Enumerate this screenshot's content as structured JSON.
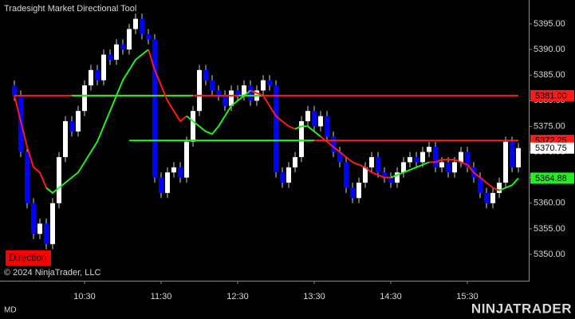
{
  "chart_data": {
    "type": "candlestick",
    "title": "Tradesight Market Directional Tool",
    "copyright": "© 2024 NinjaTrader, LLC",
    "indicator_label": "Direction",
    "indicator_label_color": "#ff0000",
    "footer_left": "MD",
    "logo": "NINJATRADER",
    "logo_color": "#f26a21",
    "up_color": "#ffffff",
    "down_color": "#0000ff",
    "wick_color": "#d0d0d0",
    "xlim": [
      563.75,
      978.1
    ],
    "xticks": [
      {
        "value": 630,
        "label": "10:30"
      },
      {
        "value": 690,
        "label": "11:30"
      },
      {
        "value": 750,
        "label": "12:30"
      },
      {
        "value": 810,
        "label": "13:30"
      },
      {
        "value": 870,
        "label": "14:30"
      },
      {
        "value": 930,
        "label": "15:30"
      }
    ],
    "ylim": [
      5344.86,
      5399.67
    ],
    "yticks": [
      {
        "value": 5350,
        "label": "5350.00"
      },
      {
        "value": 5355,
        "label": "5355.00"
      },
      {
        "value": 5360,
        "label": "5360.00"
      },
      {
        "value": 5365,
        "label": "5365.00"
      },
      {
        "value": 5370,
        "label": "5370.00"
      },
      {
        "value": 5375,
        "label": "5375.00"
      },
      {
        "value": 5380,
        "label": "5380.00"
      },
      {
        "value": 5385,
        "label": "5385.00"
      },
      {
        "value": 5390,
        "label": "5390.00"
      },
      {
        "value": 5395,
        "label": "5395.00"
      }
    ],
    "x": [
      575,
      580,
      585,
      590,
      595,
      600,
      605,
      610,
      615,
      620,
      625,
      630,
      635,
      640,
      645,
      650,
      655,
      660,
      665,
      670,
      675,
      680,
      685,
      690,
      695,
      700,
      705,
      710,
      715,
      720,
      725,
      730,
      735,
      740,
      745,
      750,
      755,
      760,
      765,
      770,
      775,
      780,
      785,
      790,
      795,
      800,
      805,
      810,
      815,
      820,
      825,
      830,
      835,
      840,
      845,
      850,
      855,
      860,
      865,
      870,
      875,
      880,
      885,
      890,
      895,
      900,
      905,
      910,
      915,
      920,
      925,
      930,
      935,
      940,
      945,
      950,
      955,
      960,
      965,
      970
    ],
    "open": [
      5383,
      5381,
      5370,
      5360,
      5354,
      5356,
      5352,
      5360,
      5369,
      5376,
      5374,
      5378,
      5383,
      5386,
      5384,
      5389,
      5388,
      5391,
      5390,
      5394,
      5396,
      5393,
      5392,
      5365,
      5362,
      5366,
      5367,
      5365,
      5372,
      5378,
      5386,
      5384,
      5382,
      5381,
      5379,
      5382,
      5381,
      5383,
      5380,
      5382,
      5384,
      5383,
      5366,
      5364,
      5367,
      5369,
      5376,
      5378,
      5375,
      5377,
      5373,
      5370,
      5368,
      5363,
      5361,
      5364,
      5367,
      5369,
      5366,
      5365,
      5364,
      5366,
      5368,
      5369,
      5368,
      5370,
      5371,
      5367,
      5368,
      5366,
      5368,
      5370,
      5367,
      5365,
      5362,
      5360,
      5362,
      5364,
      5372,
      5367
    ],
    "high": [
      5384,
      5382,
      5371,
      5361,
      5357,
      5357,
      5361,
      5370,
      5377,
      5377,
      5379,
      5384,
      5387,
      5387,
      5390,
      5390,
      5392,
      5392,
      5395,
      5397,
      5397,
      5394,
      5393,
      5366,
      5367,
      5368,
      5368,
      5373,
      5379,
      5387,
      5387,
      5385,
      5383,
      5382,
      5383,
      5383,
      5384,
      5384,
      5383,
      5385,
      5385,
      5384,
      5367,
      5368,
      5370,
      5377,
      5379,
      5379,
      5378,
      5378,
      5374,
      5371,
      5369,
      5364,
      5365,
      5368,
      5370,
      5370,
      5367,
      5366,
      5367,
      5369,
      5370,
      5370,
      5371,
      5372,
      5372,
      5369,
      5369,
      5369,
      5371,
      5371,
      5368,
      5366,
      5363,
      5363,
      5365,
      5373,
      5373,
      5371.75
    ],
    "low": [
      5380,
      5369,
      5359,
      5353,
      5353,
      5351,
      5351,
      5359,
      5368,
      5373,
      5373,
      5377,
      5382,
      5383,
      5383,
      5387,
      5387,
      5389,
      5389,
      5393,
      5392,
      5391,
      5364,
      5361,
      5361,
      5365,
      5364,
      5364,
      5371,
      5377,
      5383,
      5381,
      5380,
      5378,
      5378,
      5380,
      5380,
      5379,
      5379,
      5381,
      5382,
      5365,
      5363,
      5363,
      5366,
      5368,
      5375,
      5374,
      5374,
      5372,
      5369,
      5367,
      5362,
      5360,
      5360,
      5363,
      5366,
      5365,
      5364,
      5363,
      5363,
      5365,
      5367,
      5367,
      5367,
      5369,
      5366,
      5366,
      5365,
      5365,
      5367,
      5366,
      5364,
      5361,
      5359,
      5359,
      5361,
      5363,
      5366,
      5366
    ],
    "close": [
      5381,
      5370,
      5360,
      5354,
      5356,
      5352,
      5360,
      5369,
      5376,
      5374,
      5378,
      5383,
      5386,
      5384,
      5389,
      5388,
      5391,
      5390,
      5394,
      5396,
      5393,
      5392,
      5365,
      5362,
      5366,
      5367,
      5365,
      5372,
      5378,
      5386,
      5384,
      5382,
      5381,
      5379,
      5382,
      5381,
      5383,
      5380,
      5382,
      5384,
      5383,
      5366,
      5364,
      5367,
      5369,
      5376,
      5378,
      5375,
      5377,
      5373,
      5370,
      5368,
      5363,
      5361,
      5364,
      5367,
      5369,
      5366,
      5365,
      5364,
      5366,
      5368,
      5369,
      5368,
      5370,
      5371,
      5367,
      5368,
      5366,
      5368,
      5370,
      5367,
      5365,
      5362,
      5360,
      5362,
      5364,
      5372,
      5367,
      5370.75
    ],
    "lines": [
      {
        "color": "#ff1a1a",
        "values": [
          5381,
          5376,
          5371,
          5367,
          5366,
          5363,
          5362,
          null,
          null,
          null,
          null,
          null,
          null,
          null,
          null,
          null,
          null,
          null,
          null,
          null,
          null,
          5390,
          5386,
          5383,
          5380,
          5378,
          5376,
          5377,
          null,
          null,
          null,
          null,
          null,
          null,
          null,
          null,
          null,
          5382,
          5381.5,
          5381,
          5379,
          5377,
          5376,
          5375,
          5374.5,
          5375,
          null,
          null,
          5373,
          5372,
          5371,
          5370,
          5369,
          5368,
          5367.5,
          5367,
          5366,
          5365.5,
          5365,
          5365,
          5365.5,
          null,
          null,
          null,
          null,
          5368,
          5368,
          5368.5,
          5368.5,
          5368.5,
          5368,
          5367.5,
          5366,
          5365,
          5364,
          5363,
          5362.5,
          5363,
          null,
          null
        ]
      },
      {
        "color": "#22ee22",
        "values": [
          null,
          null,
          null,
          null,
          null,
          5363,
          5362,
          5363,
          5364,
          5365,
          5366,
          5368,
          5370,
          5372,
          5375,
          5378,
          5381,
          5384,
          5386,
          5388,
          5389,
          5390,
          null,
          null,
          null,
          null,
          null,
          5377,
          5376,
          5375,
          5374,
          5373.5,
          5375,
          5377,
          5379,
          5380,
          5381,
          5382,
          null,
          null,
          null,
          null,
          null,
          null,
          5374.5,
          5375,
          5375,
          5374,
          5373,
          null,
          null,
          null,
          null,
          null,
          null,
          null,
          null,
          null,
          null,
          5365,
          5365.5,
          5366,
          5366.5,
          5367,
          5367.5,
          5368,
          null,
          null,
          null,
          null,
          null,
          null,
          null,
          null,
          null,
          null,
          5362.5,
          5363,
          5363.5,
          5364.88
        ]
      }
    ],
    "levels": [
      {
        "value": 5381,
        "color": "#ff1a1a",
        "start": 575,
        "end": 970
      },
      {
        "value": 5372.25,
        "color": "#ff1a1a",
        "start": 680,
        "end": 970
      },
      {
        "value": 5381,
        "color": "#22ee22",
        "start": 620,
        "end": 715
      },
      {
        "value": 5381,
        "color": "#22ee22",
        "start": 751,
        "end": 770
      },
      {
        "value": 5372.25,
        "color": "#22ee22",
        "start": 665,
        "end": 810
      }
    ],
    "price_tags": [
      {
        "value": 5381,
        "label": "5381.00",
        "color": "#ff1a1a",
        "text_color": "#000000"
      },
      {
        "value": 5372.25,
        "label": "5372.25",
        "color": "#ff1a1a",
        "text_color": "#000000"
      },
      {
        "value": 5370.75,
        "label": "5370.75",
        "color": "#ffffff",
        "text_color": "#000000"
      },
      {
        "value": 5364.88,
        "label": "5364.88",
        "color": "#22ee22",
        "text_color": "#000000"
      }
    ]
  }
}
